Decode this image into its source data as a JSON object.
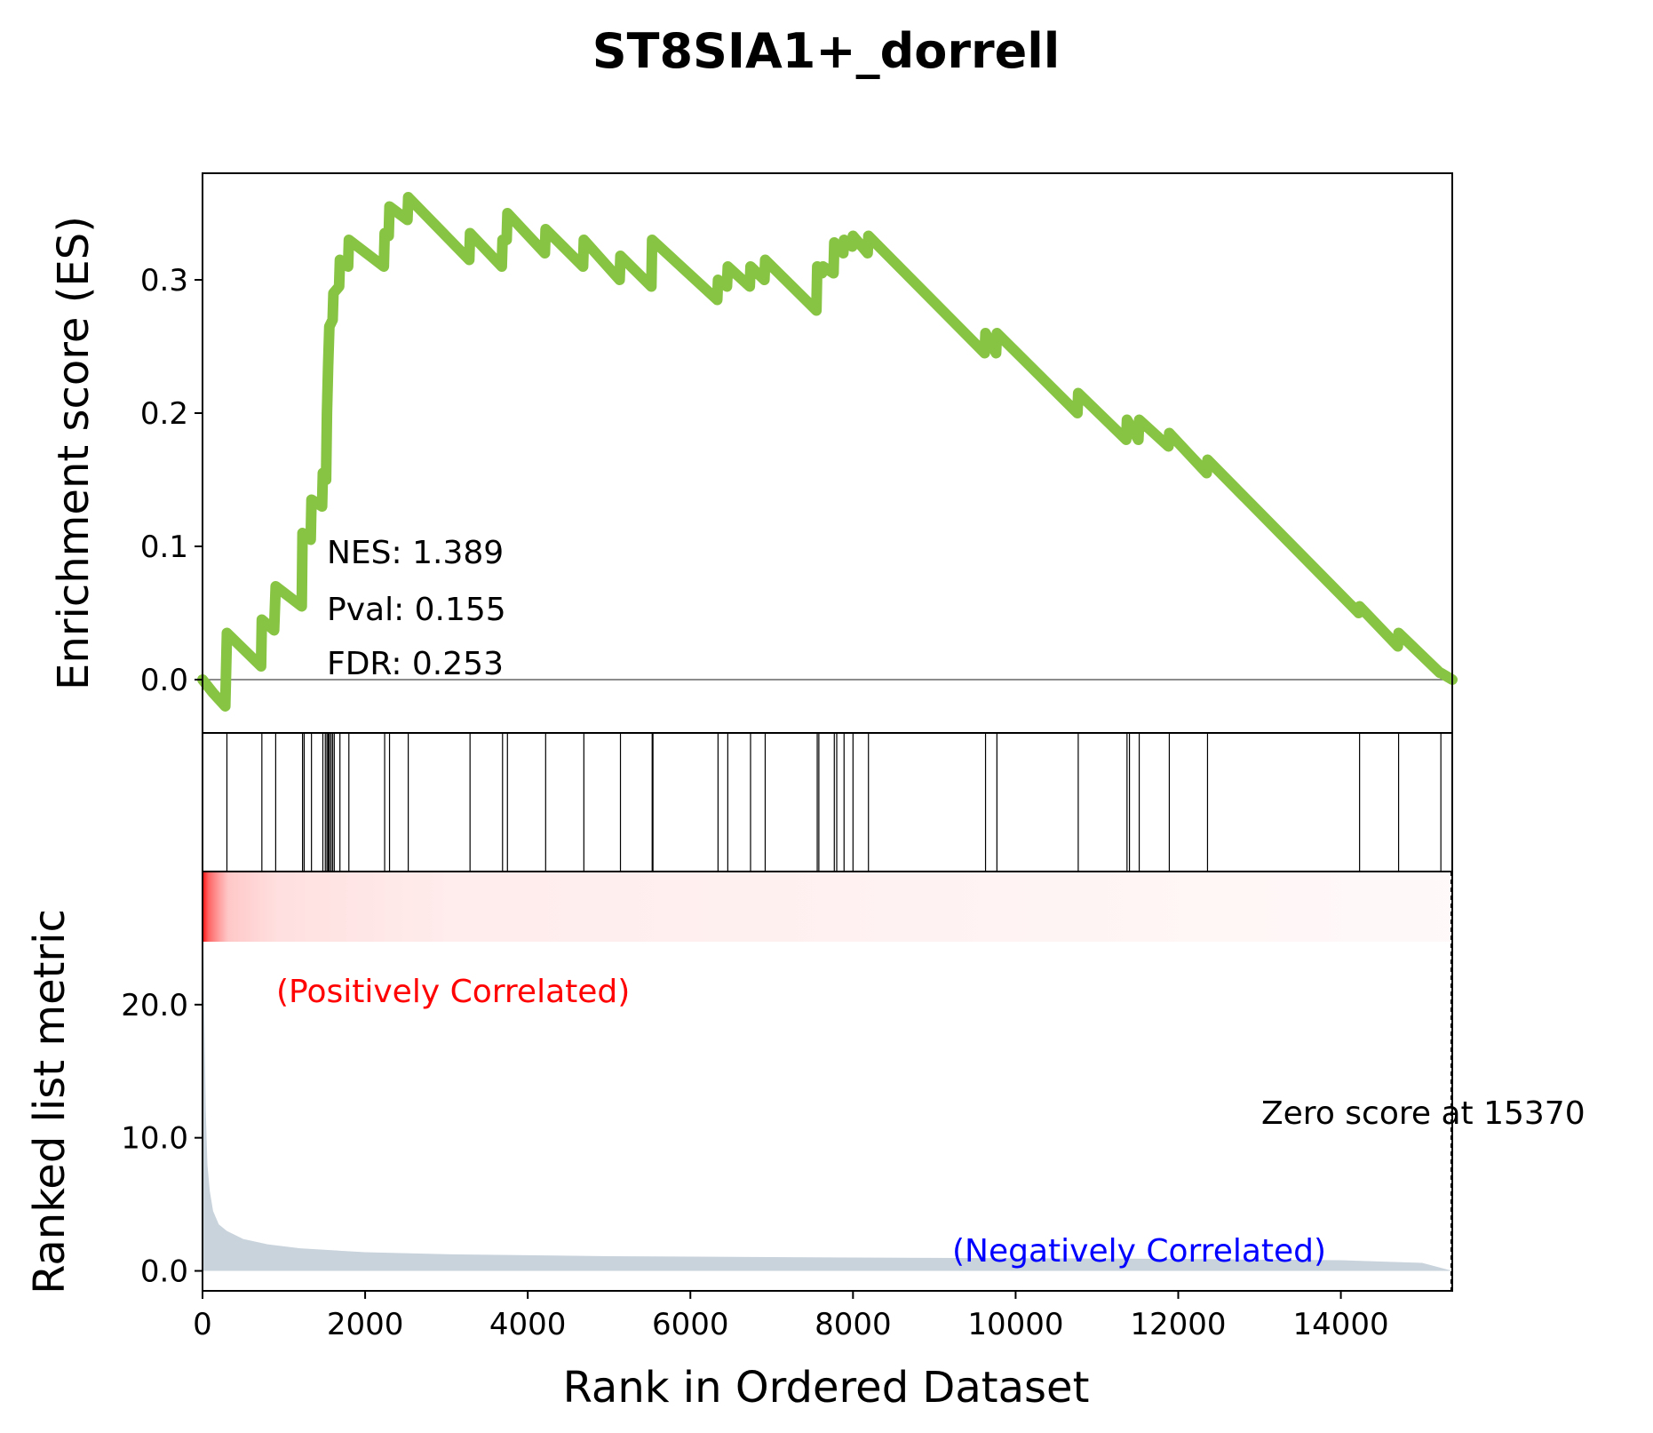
{
  "chart_data": {
    "type": "line",
    "title": "ST8SIA1+_dorrell",
    "xlabel": "Rank in Ordered Dataset",
    "ylabel_top": "Enrichment score (ES)",
    "ylabel_bottom": "Ranked list metric",
    "xlim": [
      0,
      15370
    ],
    "es_ylim": [
      -0.04,
      0.38
    ],
    "metric_ylim": [
      -1.5,
      30
    ],
    "x_ticks": [
      "0",
      "2000",
      "4000",
      "6000",
      "8000",
      "10000",
      "12000",
      "14000"
    ],
    "x_tick_values": [
      0,
      2000,
      4000,
      6000,
      8000,
      10000,
      12000,
      14000
    ],
    "es_ticks": [
      "0.0",
      "0.1",
      "0.2",
      "0.3"
    ],
    "es_tick_values": [
      0.0,
      0.1,
      0.2,
      0.3
    ],
    "metric_ticks": [
      "0.0",
      "10.0",
      "20.0"
    ],
    "metric_tick_values": [
      0,
      10,
      20
    ],
    "stats": {
      "nes": "NES: 1.389",
      "pval": "Pval: 0.155",
      "fdr": "FDR: 0.253"
    },
    "pos_label": "(Positively Correlated)",
    "neg_label": "(Negatively Correlated)",
    "zero_label": "Zero score at 15370",
    "zero_score_x": 15370,
    "es_color": "#88c444",
    "metric_color": "#c9d3dc",
    "series": [
      {
        "values": [
          [
            0,
            0.0
          ],
          [
            130,
            -0.01
          ],
          [
            280,
            -0.02
          ],
          [
            300,
            0.035
          ],
          [
            720,
            0.01
          ],
          [
            730,
            0.045
          ],
          [
            880,
            0.037
          ],
          [
            900,
            0.07
          ],
          [
            1220,
            0.055
          ],
          [
            1230,
            0.11
          ],
          [
            1330,
            0.105
          ],
          [
            1340,
            0.135
          ],
          [
            1470,
            0.13
          ],
          [
            1480,
            0.155
          ],
          [
            1520,
            0.15
          ],
          [
            1530,
            0.2
          ],
          [
            1545,
            0.235
          ],
          [
            1560,
            0.265
          ],
          [
            1600,
            0.27
          ],
          [
            1610,
            0.29
          ],
          [
            1680,
            0.295
          ],
          [
            1690,
            0.315
          ],
          [
            1790,
            0.31
          ],
          [
            1800,
            0.33
          ],
          [
            2230,
            0.31
          ],
          [
            2240,
            0.335
          ],
          [
            2290,
            0.333
          ],
          [
            2300,
            0.355
          ],
          [
            2520,
            0.345
          ],
          [
            2530,
            0.362
          ],
          [
            3280,
            0.315
          ],
          [
            3290,
            0.335
          ],
          [
            3680,
            0.31
          ],
          [
            3690,
            0.33
          ],
          [
            3740,
            0.33
          ],
          [
            3750,
            0.35
          ],
          [
            4210,
            0.32
          ],
          [
            4220,
            0.338
          ],
          [
            4680,
            0.31
          ],
          [
            4690,
            0.33
          ],
          [
            5130,
            0.3
          ],
          [
            5140,
            0.318
          ],
          [
            5520,
            0.295
          ],
          [
            5530,
            0.33
          ],
          [
            6330,
            0.285
          ],
          [
            6340,
            0.3
          ],
          [
            6450,
            0.295
          ],
          [
            6460,
            0.31
          ],
          [
            6730,
            0.295
          ],
          [
            6740,
            0.31
          ],
          [
            6910,
            0.3
          ],
          [
            6920,
            0.315
          ],
          [
            7550,
            0.277
          ],
          [
            7560,
            0.31
          ],
          [
            7620,
            0.305
          ],
          [
            7630,
            0.31
          ],
          [
            7760,
            0.305
          ],
          [
            7770,
            0.328
          ],
          [
            7880,
            0.32
          ],
          [
            7890,
            0.33
          ],
          [
            7990,
            0.325
          ],
          [
            8000,
            0.333
          ],
          [
            8180,
            0.32
          ],
          [
            8190,
            0.333
          ],
          [
            9620,
            0.245
          ],
          [
            9630,
            0.26
          ],
          [
            9760,
            0.245
          ],
          [
            9770,
            0.26
          ],
          [
            10760,
            0.2
          ],
          [
            10770,
            0.215
          ],
          [
            11360,
            0.18
          ],
          [
            11370,
            0.195
          ],
          [
            11510,
            0.18
          ],
          [
            11520,
            0.195
          ],
          [
            11880,
            0.175
          ],
          [
            11890,
            0.185
          ],
          [
            12350,
            0.155
          ],
          [
            12360,
            0.165
          ],
          [
            14220,
            0.05
          ],
          [
            14230,
            0.055
          ],
          [
            14700,
            0.025
          ],
          [
            14710,
            0.035
          ],
          [
            15220,
            0.005
          ],
          [
            15230,
            0.005
          ],
          [
            15370,
            0.0
          ]
        ]
      }
    ],
    "hits": [
      300,
      730,
      900,
      1230,
      1250,
      1340,
      1480,
      1510,
      1530,
      1545,
      1555,
      1560,
      1580,
      1600,
      1620,
      1690,
      1800,
      2240,
      2300,
      2530,
      3290,
      3690,
      3750,
      4220,
      4690,
      5140,
      5530,
      5540,
      6340,
      6460,
      6740,
      6920,
      7560,
      7580,
      7770,
      7800,
      7890,
      8000,
      8190,
      9630,
      9770,
      10770,
      11370,
      11400,
      11520,
      11890,
      12360,
      14230,
      14710,
      15230
    ],
    "ranked_metric": [
      [
        0,
        29
      ],
      [
        20,
        20
      ],
      [
        40,
        12
      ],
      [
        60,
        8
      ],
      [
        90,
        6
      ],
      [
        130,
        4.5
      ],
      [
        200,
        3.5
      ],
      [
        300,
        3.0
      ],
      [
        500,
        2.4
      ],
      [
        800,
        2.0
      ],
      [
        1200,
        1.7
      ],
      [
        2000,
        1.4
      ],
      [
        3000,
        1.25
      ],
      [
        5000,
        1.1
      ],
      [
        8000,
        1.0
      ],
      [
        10000,
        0.95
      ],
      [
        12000,
        0.9
      ],
      [
        14000,
        0.8
      ],
      [
        15000,
        0.6
      ],
      [
        15370,
        0.0
      ]
    ]
  }
}
